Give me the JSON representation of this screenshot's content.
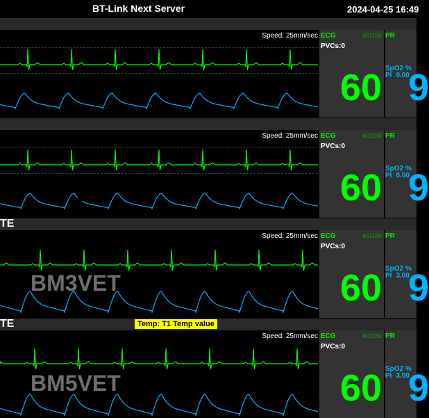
{
  "app": {
    "title": "BT-Link Next Server",
    "datetime": "2024-04-25 16:49"
  },
  "beds": [
    {
      "name": "",
      "label": "",
      "alarm": "",
      "speed": "Speed: 25mm/sec",
      "ecg": {
        "title": "ECG",
        "limits": "60/150",
        "pvcs": "PVCs:0",
        "value": "60"
      },
      "pr": {
        "title": "PR",
        "spo2": "SpO2 %",
        "pi_label": "PI",
        "pi_value": "0.00",
        "value": "9"
      }
    },
    {
      "name": "",
      "label": "",
      "alarm": "",
      "speed": "Speed: 25mm/sec",
      "ecg": {
        "title": "ECG",
        "limits": "60/150",
        "pvcs": "PVCs:0",
        "value": "60"
      },
      "pr": {
        "title": "PR",
        "spo2": "SpO2 %",
        "pi_label": "PI",
        "pi_value": "0.00",
        "value": "9"
      }
    },
    {
      "name": "TE",
      "label": "BM3VET",
      "alarm": "",
      "speed": "Speed: 25mm/sec",
      "ecg": {
        "title": "ECG",
        "limits": "60/150",
        "pvcs": "PVCs:0",
        "value": "60"
      },
      "pr": {
        "title": "PR",
        "spo2": "SpO2 %",
        "pi_label": "PI",
        "pi_value": "3.00",
        "value": "9"
      }
    },
    {
      "name": "TE",
      "label": "BM5VET",
      "alarm": "Temp: T1 Temp value",
      "speed": "Speed: 25mm/sec",
      "ecg": {
        "title": "ECG",
        "limits": "60/150",
        "pvcs": "PVCs:0",
        "value": "60"
      },
      "pr": {
        "title": "PR",
        "spo2": "SpO2 %",
        "pi_label": "PI",
        "pi_value": "3.00",
        "value": "9"
      }
    }
  ],
  "colors": {
    "ecg": "#00ff00",
    "spo2": "#00b4ff",
    "alarm_bg": "#ffff00",
    "header_bg": "#2a2a2a",
    "panel_bg": "#333333"
  }
}
